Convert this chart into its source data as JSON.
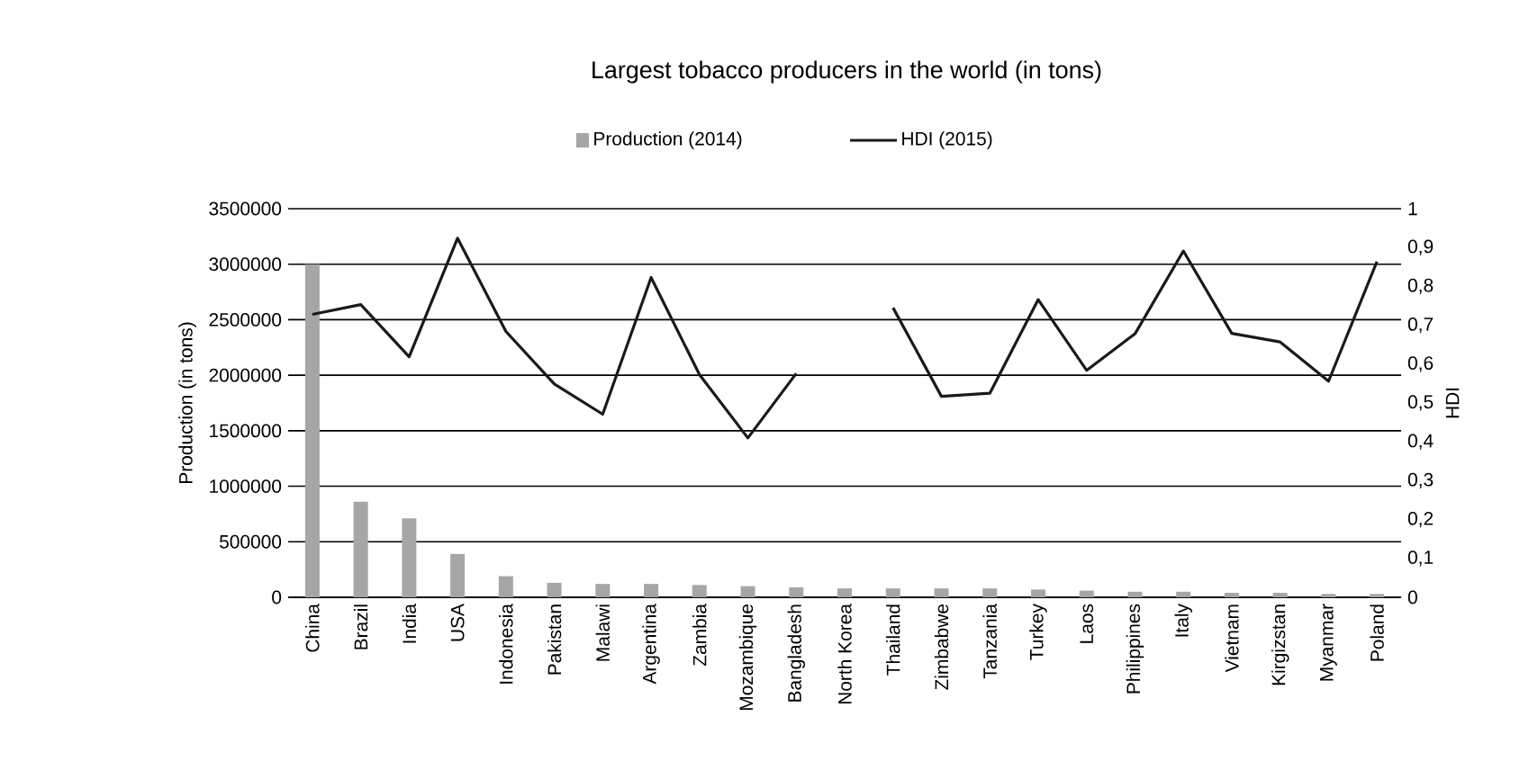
{
  "chart_data": {
    "type": "bar",
    "title": "Largest tobacco producers in the world (in tons)",
    "ylabel": "Production (in tons)",
    "y2label": "HDI",
    "categories": [
      "China",
      "Brazil",
      "India",
      "USA",
      "Indonesia",
      "Pakistan",
      "Malawi",
      "Argentina",
      "Zambia",
      "Mozambique",
      "Bangladesh",
      "North Korea",
      "Thailand",
      "Zimbabwe",
      "Tanzania",
      "Turkey",
      "Laos",
      "Philippines",
      "Italy",
      "Vietnam",
      "Kirgizstan",
      "Myanmar",
      "Poland"
    ],
    "series": [
      {
        "name": "Production (2014)",
        "color": "#a6a6a8",
        "values": [
          3000000,
          860000,
          710000,
          390000,
          190000,
          130000,
          120000,
          120000,
          110000,
          100000,
          90000,
          80000,
          80000,
          80000,
          80000,
          70000,
          60000,
          50000,
          50000,
          40000,
          40000,
          30000,
          30000
        ]
      },
      {
        "name": "HDI (2015)",
        "type": "line",
        "axis": "y2",
        "color": "#1a1a1a",
        "values": [
          0.728,
          0.753,
          0.619,
          0.924,
          0.684,
          0.549,
          0.471,
          0.823,
          0.573,
          0.41,
          0.576,
          null,
          0.745,
          0.517,
          0.525,
          0.766,
          0.584,
          0.678,
          0.891,
          0.679,
          0.657,
          0.556,
          0.864
        ]
      }
    ],
    "ylim": [
      0,
      3500000
    ],
    "yticks": [
      0,
      500000,
      1000000,
      1500000,
      2000000,
      2500000,
      3000000,
      3500000
    ],
    "y2lim": [
      0,
      1
    ],
    "y2ticks": [
      0,
      {
        "value": 0.1,
        "label": "0,1"
      },
      {
        "value": 0.2,
        "label": "0,2"
      },
      {
        "value": 0.3,
        "label": "0,3"
      },
      {
        "value": 0.4,
        "label": "0,4"
      },
      {
        "value": 0.5,
        "label": "0,5"
      },
      {
        "value": 0.6,
        "label": "0,6"
      },
      {
        "value": 0.7,
        "label": "0,7"
      },
      {
        "value": 0.8,
        "label": "0,8"
      },
      {
        "value": 0.9,
        "label": "0,9"
      },
      1
    ],
    "grid": "y",
    "legend": "top"
  }
}
